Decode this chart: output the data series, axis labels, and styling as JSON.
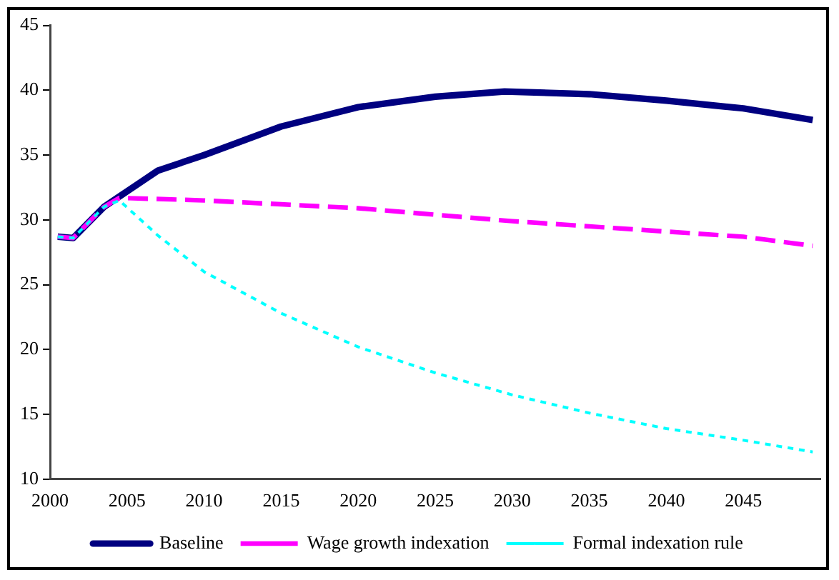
{
  "chart_data": {
    "type": "line",
    "xlim": [
      2000,
      2050
    ],
    "xticks": [
      2000,
      2005,
      2010,
      2015,
      2020,
      2025,
      2030,
      2035,
      2040,
      2045
    ],
    "ylim": [
      10,
      45
    ],
    "yticks": [
      10,
      15,
      20,
      25,
      30,
      35,
      40,
      45
    ],
    "grid": false,
    "legend": "bottom",
    "marker": "none",
    "series": [
      {
        "name": "Baseline",
        "color": "#000080",
        "line_style": "solid",
        "x": [
          2000.5,
          2001.5,
          2002.5,
          2003.5,
          2004.5,
          2007,
          2010,
          2015,
          2020,
          2025,
          2029.5,
          2035,
          2040,
          2045,
          2049.5
        ],
        "values": [
          28.7,
          28.6,
          29.8,
          31.0,
          31.8,
          33.8,
          35.0,
          37.2,
          38.7,
          39.5,
          39.9,
          39.7,
          39.2,
          38.6,
          37.7
        ]
      },
      {
        "name": "Wage growth indexation",
        "color": "#ff00ff",
        "line_style": "dashed",
        "x": [
          2000.5,
          2001.5,
          2002.5,
          2003.5,
          2004.5,
          2010,
          2015,
          2020,
          2025,
          2030,
          2035,
          2040,
          2045,
          2049.5
        ],
        "values": [
          28.7,
          28.6,
          29.8,
          31.0,
          31.7,
          31.5,
          31.2,
          30.9,
          30.4,
          29.9,
          29.5,
          29.1,
          28.7,
          28.0
        ]
      },
      {
        "name": "Formal indexation rule",
        "color": "#00ffff",
        "line_style": "dotted",
        "x": [
          2000.5,
          2001.5,
          2002.5,
          2003.5,
          2004.5,
          2007,
          2010,
          2015,
          2020,
          2025,
          2030,
          2035,
          2040,
          2045,
          2049.5
        ],
        "values": [
          28.7,
          28.6,
          29.8,
          31.0,
          31.5,
          28.8,
          26.0,
          22.8,
          20.2,
          18.2,
          16.5,
          15.1,
          13.9,
          13.0,
          12.1
        ]
      }
    ]
  }
}
